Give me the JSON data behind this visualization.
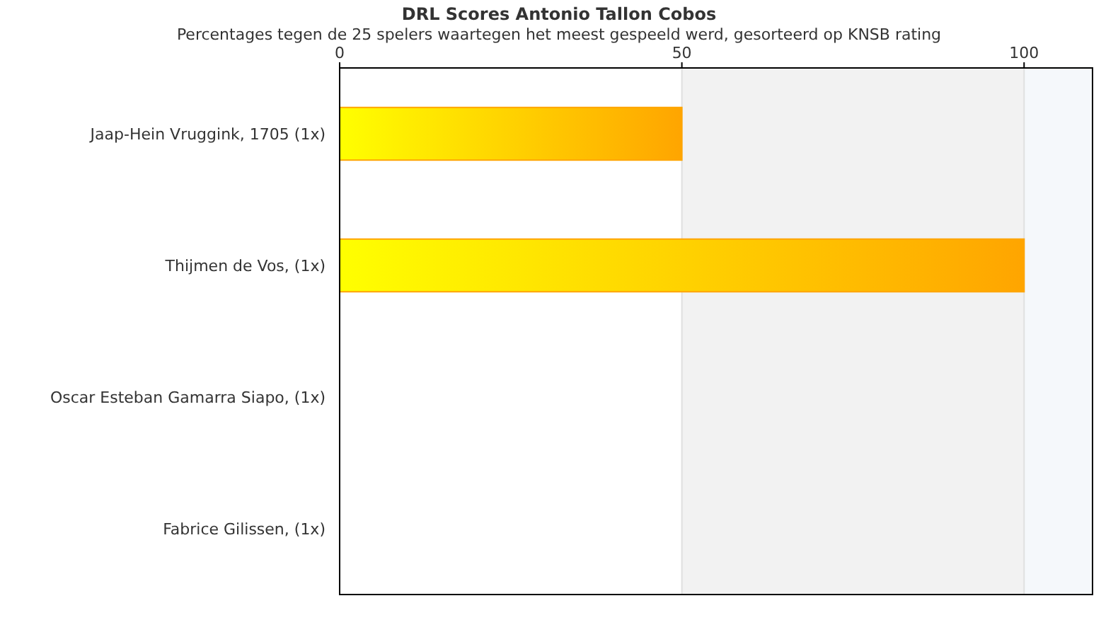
{
  "chart_data": {
    "type": "bar",
    "orientation": "horizontal",
    "title": "DRL Scores Antonio Tallon Cobos",
    "subtitle": "Percentages tegen de 25 spelers waartegen het meest gespeeld werd, gesorteerd op KNSB rating",
    "categories": [
      "Jaap-Hein Vruggink, 1705 (1x)",
      "Thijmen de Vos,  (1x)",
      "Oscar Esteban Gamarra Siapo,  (1x)",
      "Fabrice Gilissen,  (1x)"
    ],
    "values": [
      50,
      100,
      0,
      0
    ],
    "color": "#ffa500",
    "xlim": [
      0,
      110
    ],
    "xticks": [
      0,
      50,
      100
    ],
    "grid": "x",
    "bands": [
      {
        "axis": "x",
        "from": 50,
        "to": 100,
        "color": "#f2f2f2"
      },
      {
        "axis": "x",
        "from": 100,
        "to": 110,
        "color": "#f5f8fb"
      }
    ]
  }
}
